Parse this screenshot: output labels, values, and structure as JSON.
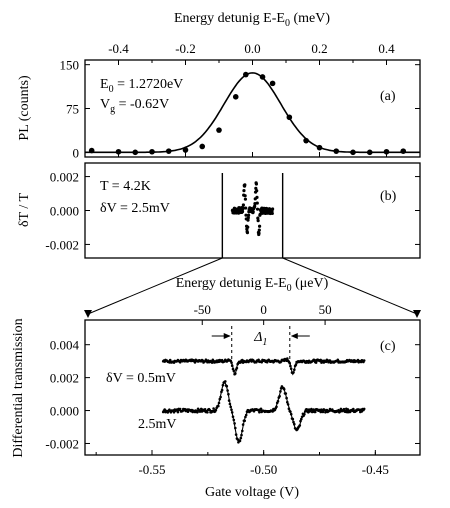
{
  "chart_data": [
    {
      "id": "a",
      "type": "scatter",
      "panel_label": "(a)",
      "top_axis_label": "Energy detunig E-E",
      "top_axis_label_sub": "0",
      "top_axis_unit": " (meV)",
      "xlim": [
        -0.5,
        0.5
      ],
      "ylim": [
        -8,
        158
      ],
      "x_ticks": [
        -0.4,
        -0.2,
        0.0,
        0.2,
        0.4
      ],
      "x_tick_labels": [
        "-0.4",
        "-0.2",
        "0.0",
        "0.2",
        "0.4"
      ],
      "y_ticks": [
        0,
        75,
        150
      ],
      "y_tick_labels": [
        "0",
        "75",
        "150"
      ],
      "ylabel": "PL (counts)",
      "annotations": [
        {
          "main": "E",
          "sub": "0",
          "rest": " = 1.2720eV"
        },
        {
          "main": "V",
          "sub": "g",
          "rest": " = -0.62V"
        }
      ],
      "points": [
        {
          "x": -0.48,
          "y": 3
        },
        {
          "x": -0.4,
          "y": 1
        },
        {
          "x": -0.35,
          "y": 0
        },
        {
          "x": -0.3,
          "y": 1
        },
        {
          "x": -0.25,
          "y": 2
        },
        {
          "x": -0.2,
          "y": 4
        },
        {
          "x": -0.15,
          "y": 10
        },
        {
          "x": -0.1,
          "y": 38
        },
        {
          "x": -0.05,
          "y": 95
        },
        {
          "x": -0.02,
          "y": 133
        },
        {
          "x": 0.03,
          "y": 129
        },
        {
          "x": 0.06,
          "y": 118
        },
        {
          "x": 0.11,
          "y": 60
        },
        {
          "x": 0.16,
          "y": 20
        },
        {
          "x": 0.2,
          "y": 8
        },
        {
          "x": 0.25,
          "y": 2
        },
        {
          "x": 0.3,
          "y": 0
        },
        {
          "x": 0.35,
          "y": 0
        },
        {
          "x": 0.4,
          "y": 1
        },
        {
          "x": 0.45,
          "y": 2
        }
      ],
      "fit": {
        "amplitude": 136,
        "center": 0.0,
        "sigma": 0.085
      }
    },
    {
      "id": "b",
      "type": "scatter",
      "panel_label": "(b)",
      "xlim": [
        -0.5,
        0.5
      ],
      "ylim": [
        -0.0028,
        0.0028
      ],
      "y_ticks": [
        -0.002,
        0.0,
        0.002
      ],
      "y_tick_labels": [
        "-0.002",
        "0.000",
        "0.002"
      ],
      "ylabel": "δT / T",
      "annotations": [
        "T = 4.2K",
        "δV = 2.5mV"
      ],
      "window_x": [
        -0.09,
        0.09
      ],
      "data_range_x": [
        -0.06,
        0.06
      ],
      "features": [
        {
          "x": -0.02,
          "up": 0.0016,
          "down": -0.0013
        },
        {
          "x": 0.015,
          "up": 0.0017,
          "down": -0.0014
        }
      ]
    },
    {
      "id": "c",
      "type": "scatter",
      "panel_label": "(c)",
      "top_axis_label": "Energy detunig E-E",
      "top_axis_label_sub": "0",
      "top_axis_unit": " (μeV)",
      "top_ticks": [
        -50,
        0,
        50
      ],
      "top_tick_labels": [
        "-50",
        "0",
        "50"
      ],
      "top_unit_scale_gate_v_per_ueV": 0.00055,
      "top_zero_at_gate_v": -0.5,
      "xlabel": "Gate voltage (V)",
      "xlim": [
        -0.58,
        -0.43
      ],
      "x_ticks": [
        -0.55,
        -0.5,
        -0.45
      ],
      "x_tick_labels": [
        "-0.55",
        "-0.50",
        "-0.45"
      ],
      "ylim": [
        -0.0027,
        0.0055
      ],
      "y_ticks": [
        -0.002,
        0.0,
        0.002,
        0.004
      ],
      "y_tick_labels": [
        "-0.002",
        "0.000",
        "0.002",
        "0.004"
      ],
      "ylabel": "Differential transmission",
      "delta_label": "Δ",
      "delta_sub": "1",
      "dashed_x": [
        -0.5143,
        -0.4883
      ],
      "series": [
        {
          "name": "δV = 0.5mV",
          "x_range": [
            -0.545,
            -0.455
          ],
          "baseline": 0.003,
          "features": [
            {
              "x": -0.5143,
              "up": 0.0001,
              "down": -0.0008
            },
            {
              "x": -0.4883,
              "up": 0.0001,
              "down": -0.0008
            }
          ]
        },
        {
          "name": "2.5mV",
          "x_range": [
            -0.545,
            -0.455
          ],
          "baseline": 0.0,
          "features": [
            {
              "x": -0.5143,
              "up": 0.0017,
              "down": -0.0019
            },
            {
              "x": -0.4883,
              "up": 0.0014,
              "down": -0.0012
            }
          ]
        }
      ]
    }
  ]
}
